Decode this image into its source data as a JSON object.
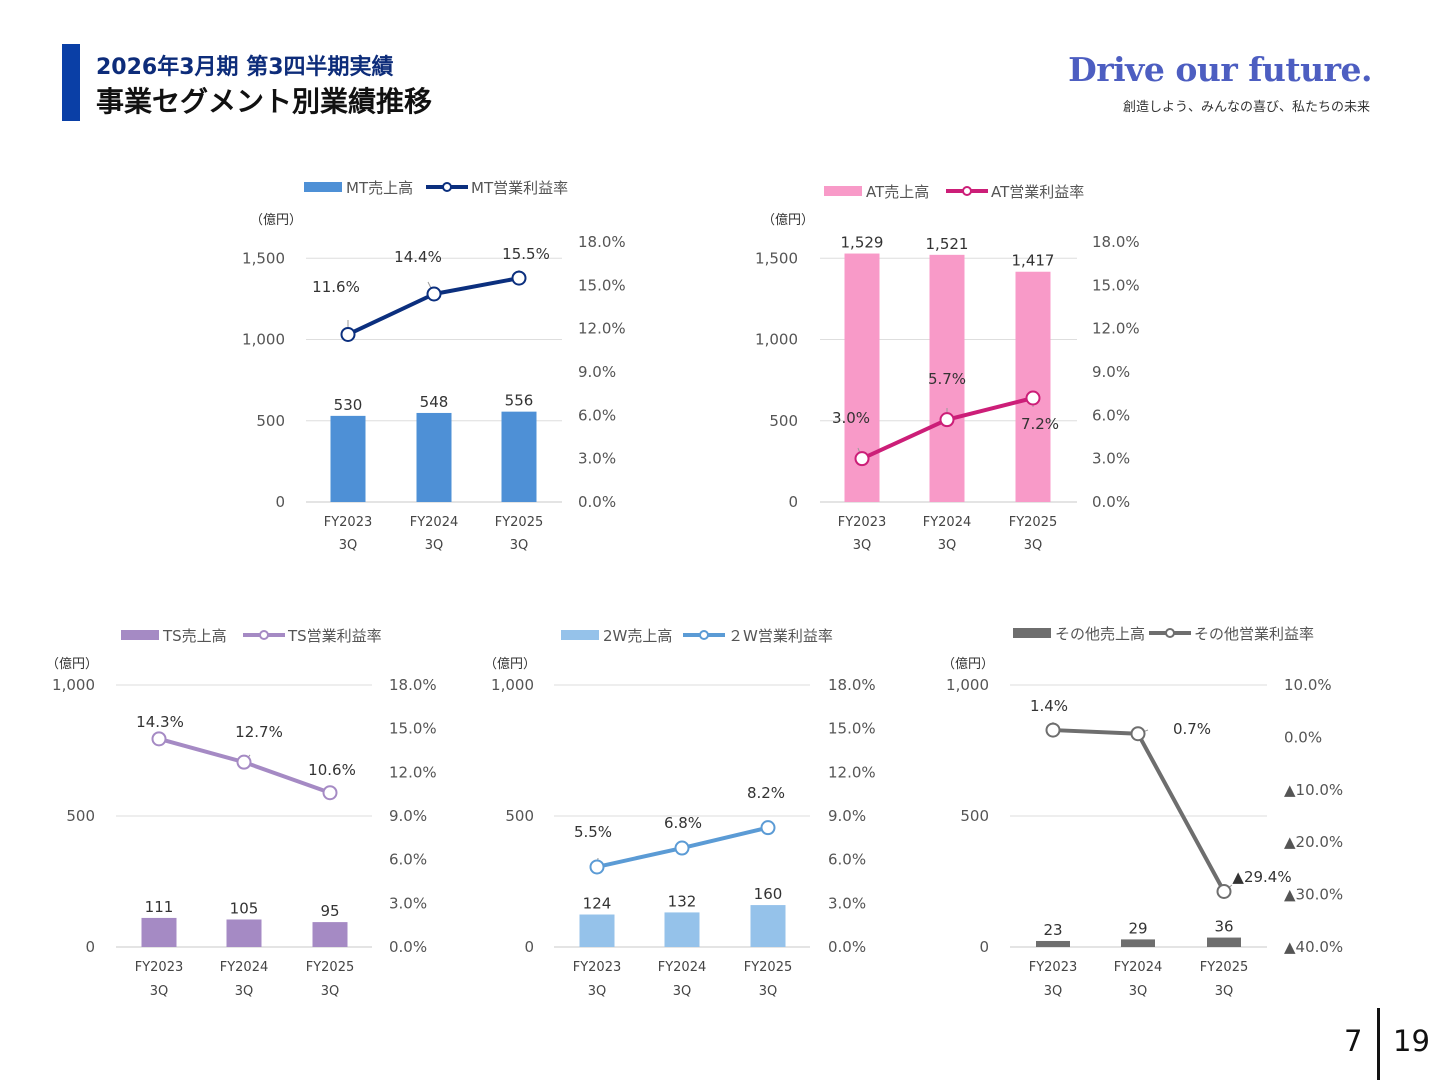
{
  "header": {
    "subtitle": "2026年3月期 第3四半期実績",
    "title": "事業セグメント別業績推移"
  },
  "brand": {
    "slogan": "Drive our future.",
    "tagline": "創造しよう、みんなの喜び、私たちの未来"
  },
  "pagination": {
    "current": "7",
    "total": "19"
  },
  "chart_data": [
    {
      "type": "bar",
      "name": "MT",
      "unit_label": "（億円）",
      "categories": [
        "FY2023",
        "FY2024",
        "FY2025"
      ],
      "category_sublabels": [
        "3Q",
        "3Q",
        "3Q"
      ],
      "bar_series": {
        "name": "MT売上高",
        "values": [
          530,
          548,
          556
        ],
        "labels": [
          "530",
          "548",
          "556"
        ],
        "color": "#4e90d6"
      },
      "line_series": {
        "name": "MT営業利益率",
        "values": [
          11.6,
          14.4,
          15.5
        ],
        "labels": [
          "11.6%",
          "14.4%",
          "15.5%"
        ],
        "color": "#0b2f7e"
      },
      "ylim": [
        0,
        1600
      ],
      "yticks": [
        0,
        500,
        1000,
        1500
      ],
      "ytick_labels": [
        "0",
        "500",
        "1,000",
        "1,500"
      ],
      "y2lim": [
        0,
        18
      ],
      "y2ticks": [
        0,
        3,
        6,
        9,
        12,
        15,
        18
      ],
      "y2tick_labels": [
        "0.0%",
        "3.0%",
        "6.0%",
        "9.0%",
        "12.0%",
        "15.0%",
        "18.0%"
      ],
      "legend_position": "top"
    },
    {
      "type": "bar",
      "name": "AT",
      "unit_label": "（億円）",
      "categories": [
        "FY2023",
        "FY2024",
        "FY2025"
      ],
      "category_sublabels": [
        "3Q",
        "3Q",
        "3Q"
      ],
      "bar_series": {
        "name": "AT売上高",
        "values": [
          1529,
          1521,
          1417
        ],
        "labels": [
          "1,529",
          "1,521",
          "1,417"
        ],
        "color": "#f89ac8"
      },
      "line_series": {
        "name": "AT営業利益率",
        "values": [
          3.0,
          5.7,
          7.2
        ],
        "labels": [
          "3.0%",
          "5.7%",
          "7.2%"
        ],
        "color": "#cc1e78"
      },
      "ylim": [
        0,
        1600
      ],
      "yticks": [
        0,
        500,
        1000,
        1500
      ],
      "ytick_labels": [
        "0",
        "500",
        "1,000",
        "1,500"
      ],
      "y2lim": [
        0,
        18
      ],
      "y2ticks": [
        0,
        3,
        6,
        9,
        12,
        15,
        18
      ],
      "y2tick_labels": [
        "0.0%",
        "3.0%",
        "6.0%",
        "9.0%",
        "12.0%",
        "15.0%",
        "18.0%"
      ],
      "legend_position": "top"
    },
    {
      "type": "bar",
      "name": "TS",
      "unit_label": "（億円）",
      "categories": [
        "FY2023",
        "FY2024",
        "FY2025"
      ],
      "category_sublabels": [
        "3Q",
        "3Q",
        "3Q"
      ],
      "bar_series": {
        "name": "TS売上高",
        "values": [
          111,
          105,
          95
        ],
        "labels": [
          "111",
          "105",
          "95"
        ],
        "color": "#a58ac4"
      },
      "line_series": {
        "name": "TS営業利益率",
        "values": [
          14.3,
          12.7,
          10.6
        ],
        "labels": [
          "14.3%",
          "12.7%",
          "10.6%"
        ],
        "color": "#a58ac4"
      },
      "ylim": [
        0,
        1000
      ],
      "yticks": [
        0,
        500,
        1000
      ],
      "ytick_labels": [
        "0",
        "500",
        "1,000"
      ],
      "y2lim": [
        0,
        18
      ],
      "y2ticks": [
        0,
        3,
        6,
        9,
        12,
        15,
        18
      ],
      "y2tick_labels": [
        "0.0%",
        "3.0%",
        "6.0%",
        "9.0%",
        "12.0%",
        "15.0%",
        "18.0%"
      ],
      "legend_position": "top"
    },
    {
      "type": "bar",
      "name": "2W",
      "unit_label": "（億円）",
      "categories": [
        "FY2023",
        "FY2024",
        "FY2025"
      ],
      "category_sublabels": [
        "3Q",
        "3Q",
        "3Q"
      ],
      "bar_series": {
        "name": "2W売上高",
        "values": [
          124,
          132,
          160
        ],
        "labels": [
          "124",
          "132",
          "160"
        ],
        "color": "#95c2ea"
      },
      "line_series": {
        "name": "２W営業利益率",
        "values": [
          5.5,
          6.8,
          8.2
        ],
        "labels": [
          "5.5%",
          "6.8%",
          "8.2%"
        ],
        "color": "#5b9bd5"
      },
      "ylim": [
        0,
        1000
      ],
      "yticks": [
        0,
        500,
        1000
      ],
      "ytick_labels": [
        "0",
        "500",
        "1,000"
      ],
      "y2lim": [
        0,
        18
      ],
      "y2ticks": [
        0,
        3,
        6,
        9,
        12,
        15,
        18
      ],
      "y2tick_labels": [
        "0.0%",
        "3.0%",
        "6.0%",
        "9.0%",
        "12.0%",
        "15.0%",
        "18.0%"
      ],
      "legend_position": "top"
    },
    {
      "type": "bar",
      "name": "Other",
      "unit_label": "（億円）",
      "categories": [
        "FY2023",
        "FY2024",
        "FY2025"
      ],
      "category_sublabels": [
        "3Q",
        "3Q",
        "3Q"
      ],
      "bar_series": {
        "name": "その他売上高",
        "values": [
          23,
          29,
          36
        ],
        "labels": [
          "23",
          "29",
          "36"
        ],
        "color": "#6e6e6e"
      },
      "line_series": {
        "name": "その他営業利益率",
        "values": [
          1.4,
          0.7,
          -29.4
        ],
        "labels": [
          "1.4%",
          "0.7%",
          "▲29.4%"
        ],
        "color": "#6e6e6e"
      },
      "ylim": [
        0,
        1000
      ],
      "yticks": [
        0,
        500,
        1000
      ],
      "ytick_labels": [
        "0",
        "500",
        "1,000"
      ],
      "y2lim": [
        -40,
        10
      ],
      "y2ticks": [
        -40,
        -30,
        -20,
        -10,
        0,
        10
      ],
      "y2tick_labels": [
        "▲40.0%",
        "▲30.0%",
        "▲20.0%",
        "▲10.0%",
        "0.0%",
        "10.0%"
      ],
      "legend_position": "top"
    }
  ]
}
